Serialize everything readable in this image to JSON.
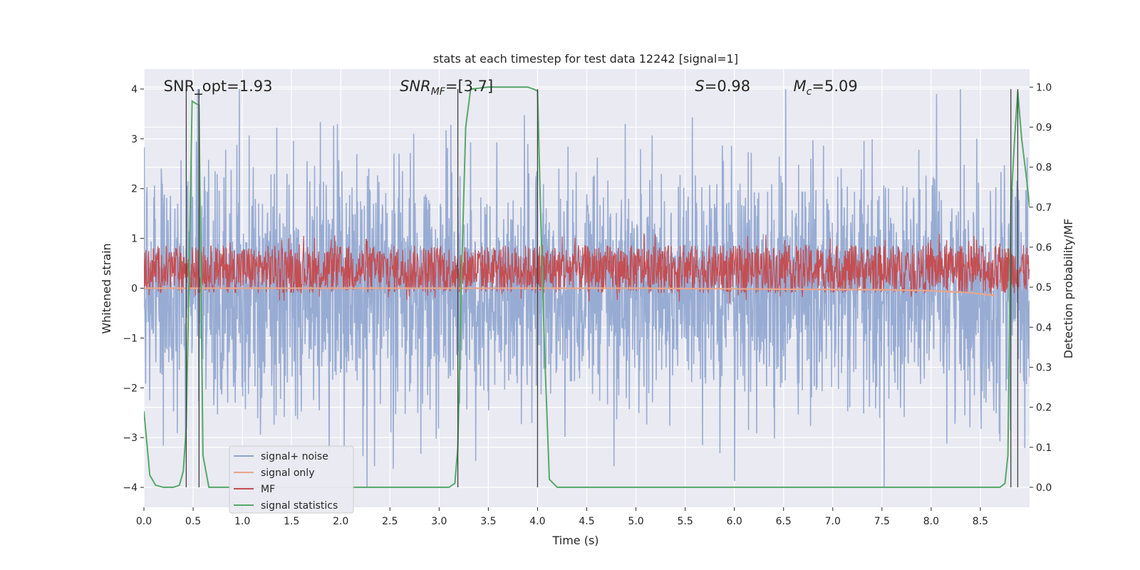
{
  "chart_data": {
    "type": "line",
    "title": "stats at each timestep for test data 12242 [signal=1]",
    "xlabel": "Time (s)",
    "ylabel_left": "Whitened strain",
    "ylabel_right": "Detection probability/MF",
    "xlim": [
      0.0,
      9.0
    ],
    "ylim_left": [
      -4.4,
      4.4
    ],
    "ylim_right": [
      -0.05,
      1.045
    ],
    "xticks": [
      "0.0",
      "0.5",
      "1.0",
      "1.5",
      "2.0",
      "2.5",
      "3.0",
      "3.5",
      "4.0",
      "4.5",
      "5.0",
      "5.5",
      "6.0",
      "6.5",
      "7.0",
      "7.5",
      "8.0",
      "8.5"
    ],
    "yticks_left": [
      "4",
      "3",
      "2",
      "1",
      "0",
      "−1",
      "−2",
      "−3",
      "−4"
    ],
    "yticks_right": [
      "1.0",
      "0.9",
      "0.8",
      "0.7",
      "0.6",
      "0.5",
      "0.4",
      "0.3",
      "0.2",
      "0.1",
      "0.0"
    ],
    "grid": true,
    "legend_position": "lower-left",
    "colors": {
      "background": "#eaeaf2",
      "noise": "#8fa5cf",
      "signal_only": "#e8a58a",
      "mf": "#c44e52",
      "stats": "#55a868",
      "vline": "#404040"
    },
    "annotations": [
      {
        "text": "SNR_opt=1.93",
        "x": 0.2,
        "y": 4.0
      },
      {
        "text": "SNR_MF=[3.7]",
        "x": 2.6,
        "y": 4.0,
        "italic": true
      },
      {
        "text": "S=0.98",
        "x": 5.6,
        "y": 4.0
      },
      {
        "text": "M_c=5.09",
        "x": 6.6,
        "y": 4.0
      }
    ],
    "vlines_x": [
      0.43,
      0.56,
      3.19,
      4.0,
      8.81,
      8.88
    ],
    "series": [
      {
        "name": "signal+ noise",
        "axis": "left",
        "style": "noisy",
        "amplitude": 1.2,
        "peak_max": 4.0,
        "peak_min": -4.0
      },
      {
        "name": "signal only",
        "axis": "left",
        "x": [
          0,
          5,
          6.5,
          7.5,
          8.0,
          8.4,
          8.65
        ],
        "y": [
          0.0,
          0.0,
          -0.02,
          -0.03,
          -0.05,
          -0.09,
          -0.15
        ]
      },
      {
        "name": "MF",
        "axis": "right",
        "style": "noisy_band",
        "center": 0.545,
        "half_width": 0.06
      },
      {
        "name": "signal statistics",
        "axis": "right",
        "x": [
          0.0,
          0.06,
          0.12,
          0.2,
          0.3,
          0.36,
          0.4,
          0.43,
          0.46,
          0.49,
          0.52,
          0.56,
          0.6,
          0.66,
          0.7,
          3.0,
          3.1,
          3.16,
          3.19,
          3.23,
          3.27,
          3.32,
          3.5,
          3.9,
          3.96,
          4.0,
          4.03,
          4.07,
          4.12,
          4.2,
          4.5,
          8.6,
          8.7,
          8.75,
          8.78,
          8.81,
          8.85,
          8.88,
          8.92,
          8.97,
          9.0
        ],
        "y": [
          0.19,
          0.03,
          0.005,
          0.0,
          0.0,
          0.005,
          0.04,
          0.15,
          0.55,
          0.965,
          0.96,
          0.955,
          0.08,
          0.0,
          0.0,
          0.0,
          0.0,
          0.01,
          0.1,
          0.55,
          0.9,
          0.995,
          1.0,
          1.0,
          0.995,
          0.99,
          0.7,
          0.35,
          0.02,
          0.0,
          0.0,
          0.0,
          0.0,
          0.01,
          0.08,
          0.7,
          0.88,
          0.99,
          0.87,
          0.77,
          0.7
        ]
      }
    ]
  },
  "legend": {
    "items": [
      {
        "label": "signal+ noise",
        "color": "#8fa5cf"
      },
      {
        "label": "signal only",
        "color": "#e8a58a"
      },
      {
        "label": "MF",
        "color": "#c44e52"
      },
      {
        "label": "signal statistics",
        "color": "#55a868"
      }
    ]
  }
}
